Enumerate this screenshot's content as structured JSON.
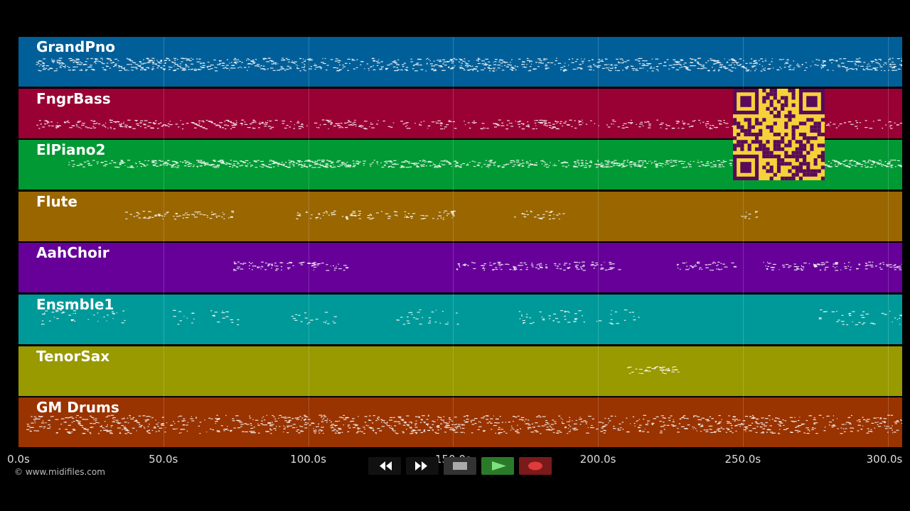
{
  "tracks": [
    {
      "name": "GrandPno",
      "color": "#005f99"
    },
    {
      "name": "FngrBass",
      "color": "#990033"
    },
    {
      "name": "ElPiano2",
      "color": "#009933"
    },
    {
      "name": "Flute",
      "color": "#996600"
    },
    {
      "name": "AahChoir",
      "color": "#660099"
    },
    {
      "name": "Ensmble1",
      "color": "#009999"
    },
    {
      "name": "TenorSax",
      "color": "#999900"
    },
    {
      "name": "GM Drums",
      "color": "#993300"
    }
  ],
  "timeline": {
    "ticks": [
      "0.0s",
      "50.0s",
      "100.0s",
      "150.0s",
      "200.0s",
      "250.0s",
      "300.0s"
    ],
    "max_seconds": 305
  },
  "copyright": "© www.midifiles.com",
  "transport": {
    "rewind": "rewind-icon",
    "fast_forward": "fast-forward-icon",
    "stop": "stop-icon",
    "play": "play-icon",
    "record": "record-icon"
  },
  "colors": {
    "qr_bg": "#f5d23a",
    "qr_fg": "#5a0a5a",
    "play_bg": "#2a7a2a",
    "record_bg": "#7a1a1a"
  }
}
